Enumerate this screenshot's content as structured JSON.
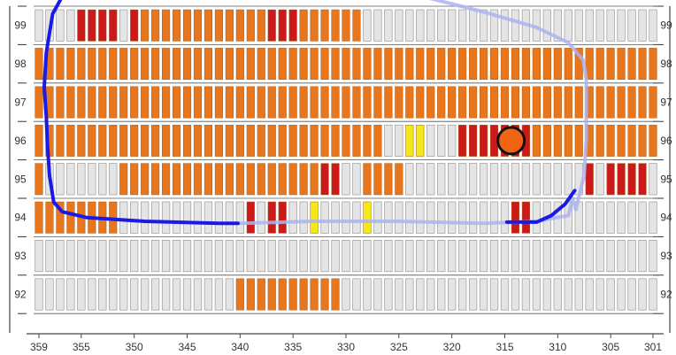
{
  "chart_data": {
    "type": "heatmap",
    "x_axis": {
      "range": [
        359,
        301
      ],
      "ticks": [
        359,
        355,
        350,
        345,
        340,
        335,
        330,
        325,
        320,
        315,
        310,
        305,
        301
      ]
    },
    "y_axis": {
      "rows": [
        99,
        98,
        97,
        96,
        95,
        94,
        93,
        92
      ]
    },
    "status_colors": {
      "empty": "#e4e4e4",
      "orange": "#e8761c",
      "red": "#cc1a1a",
      "yellow": "#f2e81a"
    },
    "path_colors": {
      "solid": "#1a1ae6",
      "faded": "#aab4ee"
    },
    "rows": [
      {
        "row": 99,
        "segments": [
          {
            "from": 355,
            "to": 352,
            "status": "red"
          },
          {
            "from": 350,
            "to": 350,
            "status": "red"
          },
          {
            "from": 349,
            "to": 338,
            "status": "orange"
          },
          {
            "from": 337,
            "to": 335,
            "status": "red"
          },
          {
            "from": 334,
            "to": 329,
            "status": "orange"
          }
        ]
      },
      {
        "row": 98,
        "segments": [
          {
            "from": 359,
            "to": 301,
            "status": "orange"
          }
        ]
      },
      {
        "row": 97,
        "segments": [
          {
            "from": 359,
            "to": 301,
            "status": "orange"
          }
        ]
      },
      {
        "row": 96,
        "segments": [
          {
            "from": 359,
            "to": 327,
            "status": "orange"
          },
          {
            "from": 324,
            "to": 323,
            "status": "yellow"
          },
          {
            "from": 319,
            "to": 316,
            "status": "red"
          },
          {
            "from": 315,
            "to": 313,
            "status": "red"
          },
          {
            "from": 312,
            "to": 301,
            "status": "orange"
          }
        ]
      },
      {
        "row": 95,
        "segments": [
          {
            "from": 359,
            "to": 359,
            "status": "orange"
          },
          {
            "from": 351,
            "to": 333,
            "status": "orange"
          },
          {
            "from": 332,
            "to": 331,
            "status": "red"
          },
          {
            "from": 328,
            "to": 325,
            "status": "orange"
          },
          {
            "from": 307,
            "to": 307,
            "status": "red"
          },
          {
            "from": 305,
            "to": 302,
            "status": "red"
          }
        ]
      },
      {
        "row": 94,
        "segments": [
          {
            "from": 359,
            "to": 352,
            "status": "orange"
          },
          {
            "from": 339,
            "to": 339,
            "status": "red"
          },
          {
            "from": 337,
            "to": 336,
            "status": "red"
          },
          {
            "from": 333,
            "to": 333,
            "status": "yellow"
          },
          {
            "from": 328,
            "to": 328,
            "status": "yellow"
          },
          {
            "from": 314,
            "to": 313,
            "status": "red"
          }
        ]
      },
      {
        "row": 93,
        "segments": []
      },
      {
        "row": 92,
        "segments": [
          {
            "from": 340,
            "to": 331,
            "status": "orange"
          }
        ]
      }
    ],
    "path_solid": [
      [
        352,
        99.95
      ],
      [
        356.5,
        99.9
      ],
      [
        357.7,
        99.3
      ],
      [
        358.3,
        98.3
      ],
      [
        358.5,
        97.4
      ],
      [
        358.3,
        96.6
      ],
      [
        358.2,
        95.9
      ],
      [
        358,
        95.1
      ],
      [
        357.6,
        94.4
      ],
      [
        356.8,
        94.15
      ],
      [
        354.5,
        94
      ],
      [
        349,
        93.9
      ],
      [
        342,
        93.85
      ],
      [
        340.2,
        93.85
      ]
    ],
    "path_faded": [
      [
        352,
        99.95
      ],
      [
        341,
        99.95
      ],
      [
        333,
        99.9
      ],
      [
        327,
        99.85
      ],
      [
        322,
        99.7
      ],
      [
        317,
        99.35
      ],
      [
        312,
        98.95
      ],
      [
        309,
        98.55
      ],
      [
        307.6,
        98.1
      ],
      [
        307.3,
        97.6
      ],
      [
        307.3,
        96
      ],
      [
        307.5,
        95.1
      ],
      [
        308.3,
        94.2
      ],
      [
        308.6,
        94.5
      ],
      [
        309,
        94.05
      ],
      [
        312,
        93.9
      ],
      [
        317,
        93.85
      ],
      [
        325,
        93.9
      ],
      [
        333,
        93.9
      ],
      [
        340,
        93.85
      ]
    ],
    "path_solid_right": [
      [
        314.8,
        93.88
      ],
      [
        312,
        93.88
      ],
      [
        310.6,
        94.05
      ],
      [
        309.3,
        94.35
      ],
      [
        308.4,
        94.7
      ]
    ],
    "marker": {
      "x": 314.4,
      "y": 96,
      "fill": "#f06414"
    }
  }
}
